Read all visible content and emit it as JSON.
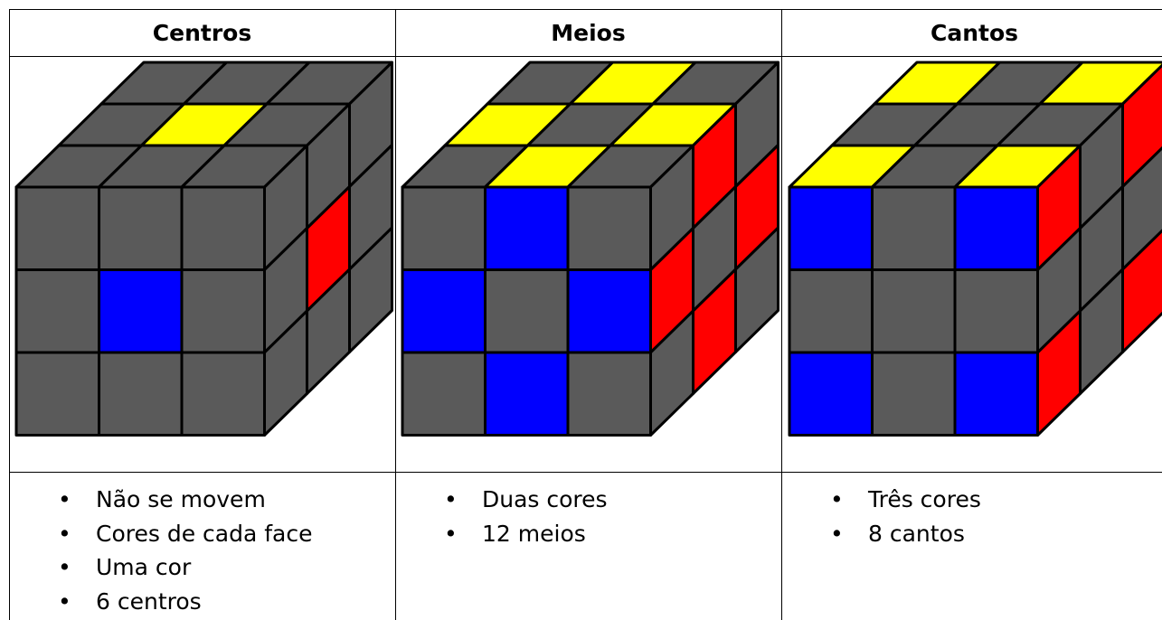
{
  "table": {
    "columns": [
      {
        "title": "Centros",
        "items": [
          "Não se movem",
          "Cores de cada face",
          "Uma cor",
          "6 centros"
        ]
      },
      {
        "title": "Meios",
        "items": [
          "Duas cores",
          "12 meios"
        ]
      },
      {
        "title": "Cantos",
        "items": [
          "Três cores",
          "8 cantos"
        ]
      }
    ]
  }
}
